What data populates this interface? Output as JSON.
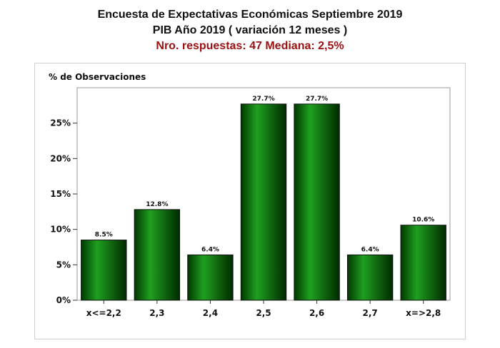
{
  "title": "Encuesta de Expectativas Económicas Septiembre 2019",
  "subtitle": "PIB Año 2019 ( variación 12 meses )",
  "info": "Nro. respuestas: 47 Mediana: 2,5%",
  "colors": {
    "info": "#9b1111",
    "bar_dark": "#003300",
    "bar_light": "#1fa01f"
  },
  "chart_data": {
    "type": "bar",
    "title": "Encuesta de Expectativas Económicas Septiembre 2019",
    "ylabel": "% de Observaciones",
    "xlabel": "",
    "categories": [
      "x<=2,2",
      "2,3",
      "2,4",
      "2,5",
      "2,6",
      "2,7",
      "x=>2,8"
    ],
    "values": [
      8.5,
      12.8,
      6.4,
      27.7,
      27.7,
      6.4,
      10.6
    ],
    "value_labels": [
      "8.5%",
      "12.8%",
      "6.4%",
      "27.7%",
      "27.7%",
      "6.4%",
      "10.6%"
    ],
    "ylim": [
      0,
      30
    ],
    "yticks": [
      0,
      5,
      10,
      15,
      20,
      25
    ],
    "ytick_labels": [
      "0%",
      "5%",
      "10%",
      "15%",
      "20%",
      "25%"
    ],
    "grid": false,
    "legend": "none"
  }
}
